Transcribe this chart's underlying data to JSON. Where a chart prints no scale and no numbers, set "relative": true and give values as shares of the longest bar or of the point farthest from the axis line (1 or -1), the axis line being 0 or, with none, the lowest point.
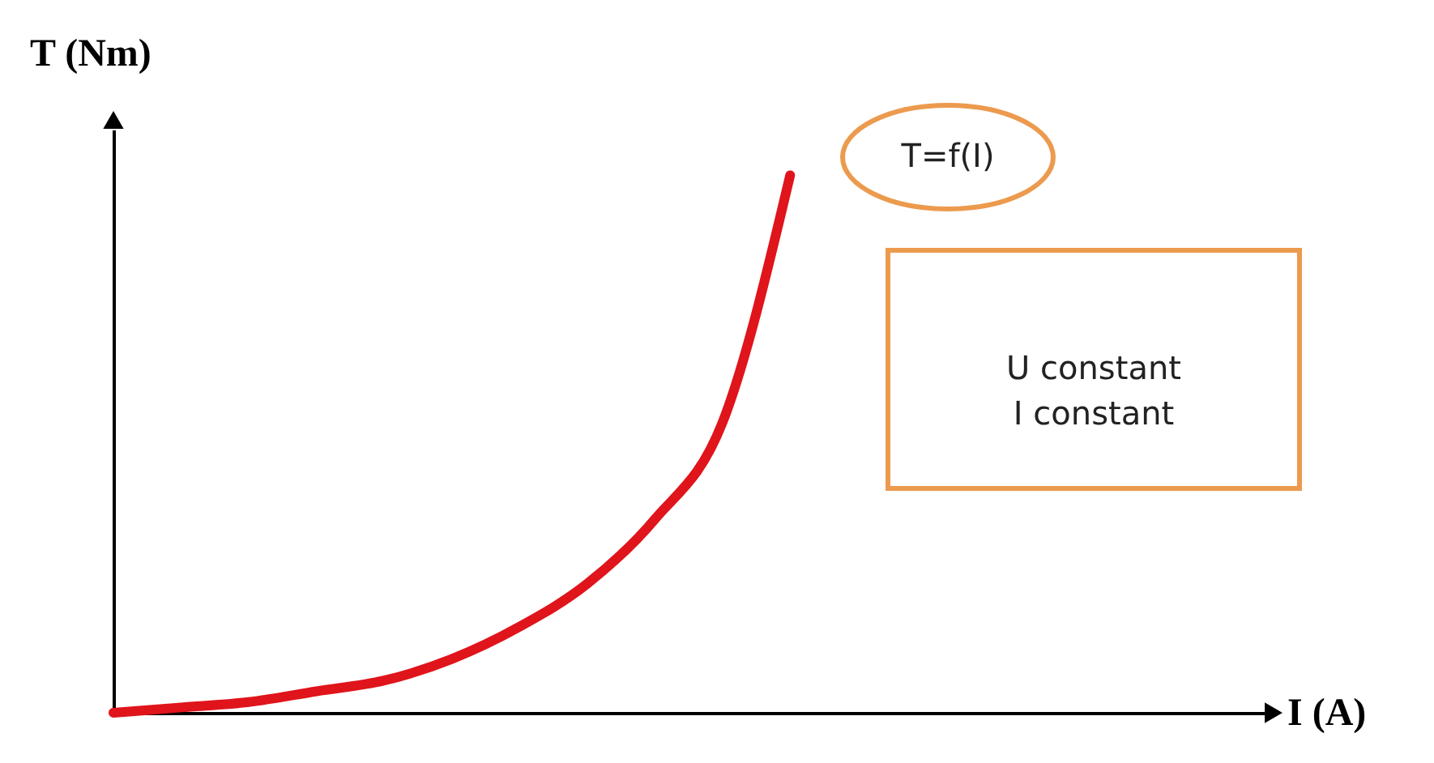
{
  "chart_data": {
    "type": "line",
    "relative": true,
    "xlabel": "I (A)",
    "ylabel": "T (Nm)",
    "categories": [
      null,
      null,
      null,
      null,
      null,
      null,
      null,
      null,
      null,
      null,
      null,
      null,
      null,
      null,
      null,
      null,
      null,
      null
    ],
    "series": [
      {
        "color": "#e0141b",
        "values": [
          0,
          0.01,
          0.02,
          0.04,
          0.06,
          0.1,
          0.16,
          0.24,
          0.36,
          0.54,
          1,
          null,
          null,
          null,
          null,
          null,
          null,
          null
        ]
      }
    ],
    "annotations": [
      "T=f(I)",
      "U constant\nI constant"
    ]
  }
}
